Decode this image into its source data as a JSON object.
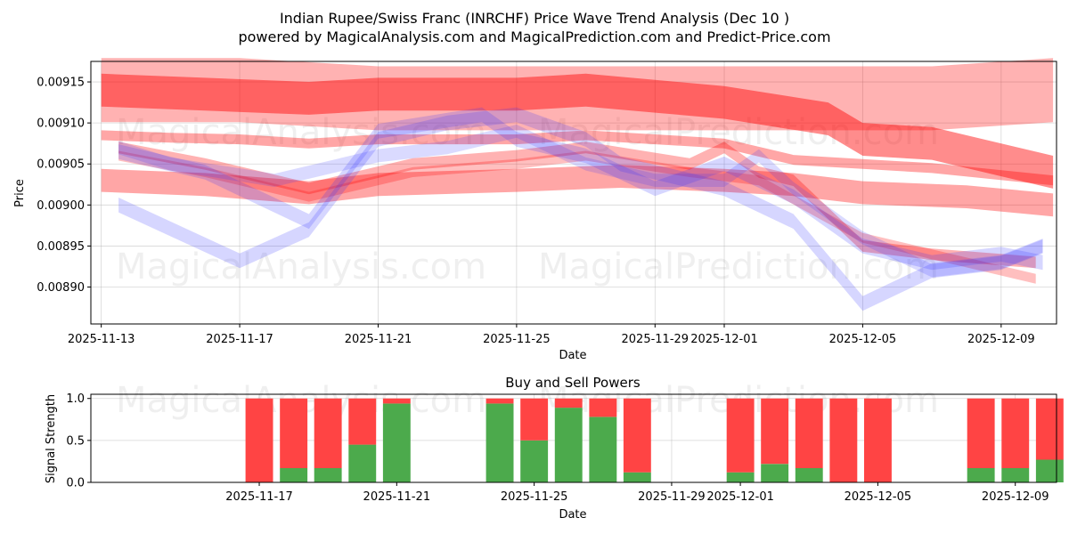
{
  "header": {
    "title_line1": "Indian Rupee/Swiss Franc (INRCHF) Price Wave Trend Analysis (Dec 10 )",
    "title_line2": "powered by MagicalAnalysis.com and MagicalPrediction.com and Predict-Price.com"
  },
  "watermarks": {
    "top_1": "MagicalAnalysis.com",
    "top_2": "MagicalPrediction.com",
    "mid_1": "MagicalAnalysis.com",
    "mid_2": "MagicalPrediction.com",
    "bottom_1": "MagicalAnalysis.com",
    "bottom_2": "MagicalPrediction.com"
  },
  "colors": {
    "red_band": "#ff0000",
    "blue_band": "#3333ff",
    "buy": "#4caa4c",
    "sell": "#ff4444"
  },
  "chart_data": [
    {
      "type": "line",
      "name": "price-wave-chart",
      "title": "",
      "xlabel": "Date",
      "ylabel": "Price",
      "x_range_days": [
        -0.3,
        27.6
      ],
      "x_tick_labels": [
        "2025-11-13",
        "2025-11-17",
        "2025-11-21",
        "2025-11-25",
        "2025-11-29",
        "2025-12-01",
        "2025-12-05",
        "2025-12-09"
      ],
      "x_tick_days": [
        0,
        4,
        8,
        12,
        16,
        18,
        22,
        26
      ],
      "ylim": [
        0.008855,
        0.009175
      ],
      "y_ticks": [
        0.0089,
        0.00895,
        0.009,
        0.00905,
        0.0091,
        0.00915
      ],
      "y_tick_labels": [
        "0.00890",
        "0.00895",
        "0.00900",
        "0.00905",
        "0.00910",
        "0.00915"
      ],
      "grid": true,
      "series": [
        {
          "name": "red-wave-1",
          "color": "red",
          "opacity": 0.3,
          "width": 7.8e-05,
          "x": [
            0,
            4,
            8,
            12,
            16,
            20,
            24,
            27.5
          ],
          "y": [
            0.00914,
            0.00914,
            0.00913,
            0.00913,
            0.00913,
            0.00913,
            0.00913,
            0.00914
          ]
        },
        {
          "name": "red-wave-2",
          "color": "red",
          "opacity": 0.45,
          "width": 4e-05,
          "x": [
            0,
            3,
            6,
            8,
            12,
            14,
            18,
            21,
            22,
            24,
            27.5
          ],
          "y": [
            0.00914,
            0.009135,
            0.00913,
            0.009135,
            0.009135,
            0.00914,
            0.009125,
            0.009105,
            0.00908,
            0.009075,
            0.00904
          ]
        },
        {
          "name": "red-wave-3",
          "color": "red",
          "opacity": 0.35,
          "width": 1.2e-05,
          "x": [
            0,
            2,
            4,
            6,
            8,
            10,
            12,
            14,
            16,
            18,
            20,
            22,
            24,
            27.5
          ],
          "y": [
            0.009085,
            0.009082,
            0.00908,
            0.009075,
            0.00908,
            0.00908,
            0.00908,
            0.009085,
            0.00908,
            0.009075,
            0.009055,
            0.00905,
            0.009045,
            0.00903
          ]
        },
        {
          "name": "red-wave-4",
          "color": "red",
          "opacity": 0.35,
          "width": 2.8e-05,
          "x": [
            0,
            3,
            6,
            8,
            12,
            15,
            18,
            20,
            22,
            25,
            27.5
          ],
          "y": [
            0.00903,
            0.009025,
            0.009015,
            0.009025,
            0.00903,
            0.009035,
            0.00903,
            0.009025,
            0.009015,
            0.00901,
            0.009
          ]
        },
        {
          "name": "red-wave-5",
          "color": "red",
          "opacity": 0.3,
          "width": 1.4e-05,
          "x": [
            0.5,
            3,
            6,
            9,
            12,
            14,
            17,
            18,
            19,
            20,
            22,
            24,
            27
          ],
          "y": [
            0.00907,
            0.00905,
            0.00902,
            0.00905,
            0.00906,
            0.00907,
            0.00905,
            0.00907,
            0.00904,
            0.00903,
            0.00895,
            0.00894,
            0.00893
          ]
        },
        {
          "name": "red-wave-6",
          "color": "red",
          "opacity": 0.25,
          "width": 1.2e-05,
          "x": [
            0.5,
            3,
            6,
            9,
            12,
            14,
            17,
            19,
            22,
            24,
            27
          ],
          "y": [
            0.00906,
            0.00904,
            0.00901,
            0.00904,
            0.00905,
            0.00906,
            0.00904,
            0.00903,
            0.00896,
            0.00894,
            0.00891
          ]
        },
        {
          "name": "blue-wave-1",
          "color": "blue",
          "opacity": 0.2,
          "width": 1.8e-05,
          "x": [
            0.5,
            4,
            6,
            8,
            10,
            12,
            14,
            15,
            17,
            18,
            20,
            22,
            24,
            26,
            27.2
          ],
          "y": [
            0.009,
            0.008932,
            0.00897,
            0.00908,
            0.0091,
            0.00911,
            0.00908,
            0.00905,
            0.00903,
            0.00902,
            0.00898,
            0.00888,
            0.00892,
            0.00893,
            0.00895
          ]
        },
        {
          "name": "blue-wave-2",
          "color": "blue",
          "opacity": 0.2,
          "width": 1.8e-05,
          "x": [
            0.5,
            3,
            6,
            8,
            11,
            12,
            14,
            16,
            18,
            20,
            22,
            24,
            26,
            27.2
          ],
          "y": [
            0.009065,
            0.00904,
            0.00898,
            0.00909,
            0.00911,
            0.00908,
            0.00906,
            0.00902,
            0.00905,
            0.00901,
            0.00895,
            0.00893,
            0.00894,
            0.00893
          ]
        },
        {
          "name": "blue-wave-3",
          "color": "blue",
          "opacity": 0.18,
          "width": 1.6e-05,
          "x": [
            0.5,
            2,
            5,
            8,
            10,
            12,
            14,
            16,
            18,
            19,
            20,
            22,
            24,
            26,
            27.2
          ],
          "y": [
            0.00907,
            0.00905,
            0.00903,
            0.00906,
            0.00907,
            0.00909,
            0.00905,
            0.00903,
            0.00903,
            0.00906,
            0.00902,
            0.00896,
            0.00892,
            0.00893,
            0.00895
          ]
        }
      ]
    },
    {
      "type": "bar",
      "name": "buy-sell-powers",
      "title": "Buy and Sell Powers",
      "xlabel": "Date",
      "ylabel": "Signal Strength",
      "x_range_days": [
        -0.9,
        27.2
      ],
      "ylim": [
        0,
        1.05
      ],
      "y_ticks": [
        0,
        0.5,
        1
      ],
      "y_tick_labels": [
        "0.0",
        "0.5",
        "1.0"
      ],
      "x_tick_labels": [
        "2025-11-17",
        "2025-11-21",
        "2025-11-25",
        "2025-11-29",
        "2025-12-01",
        "2025-12-05",
        "2025-12-09"
      ],
      "x_tick_days": [
        4,
        8,
        12,
        16,
        18,
        22,
        26
      ],
      "grid": true,
      "x": [
        4,
        5,
        6,
        7,
        8,
        11,
        12,
        13,
        14,
        15,
        18,
        19,
        20,
        21,
        22,
        25,
        26,
        27
      ],
      "buy": [
        0.0,
        0.17,
        0.17,
        0.45,
        0.94,
        0.94,
        0.5,
        0.89,
        0.78,
        0.12,
        0.12,
        0.22,
        0.17,
        0.0,
        0.0,
        0.17,
        0.17,
        0.27
      ],
      "sell": [
        1.0,
        0.83,
        0.83,
        0.55,
        0.06,
        0.06,
        0.5,
        0.11,
        0.22,
        0.88,
        0.88,
        0.78,
        0.83,
        1.0,
        1.0,
        0.83,
        0.83,
        0.73
      ]
    }
  ]
}
